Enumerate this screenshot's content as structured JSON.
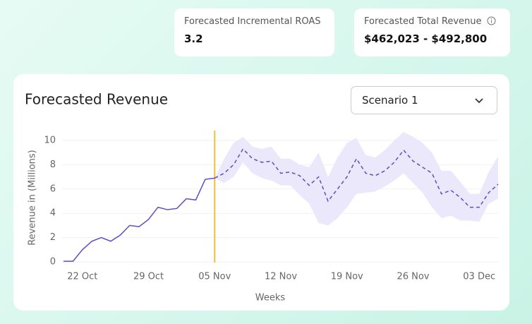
{
  "cards": [
    {
      "label": "Forecasted Incremental ROAS",
      "value": "3.2"
    },
    {
      "label": "Forecasted Total Revenue",
      "value": "$462,023 - $492,800"
    }
  ],
  "dropdown": {
    "selected": "Scenario 1"
  },
  "chart_data": {
    "type": "line",
    "title": "Forecasted Revenue",
    "y_label": "Revenue in (Millions)",
    "x_label": "Weeks",
    "categories": [
      null,
      null,
      "22 Oct",
      null,
      null,
      null,
      null,
      null,
      null,
      "29 Oct",
      null,
      null,
      null,
      null,
      null,
      null,
      "05 Nov",
      null,
      null,
      null,
      null,
      null,
      null,
      "12 Nov",
      null,
      null,
      null,
      null,
      null,
      null,
      "19 Nov",
      null,
      null,
      null,
      null,
      null,
      null,
      "26 Nov",
      null,
      null,
      null,
      null,
      null,
      null,
      "03 Dec",
      null,
      null
    ],
    "series": [
      {
        "color": "#5b4fc4",
        "dashed": false,
        "values": [
          0.05,
          0.05,
          1.0,
          1.7,
          2.0,
          1.7,
          2.2,
          3.0,
          2.9,
          3.5,
          4.5,
          4.3,
          4.4,
          5.2,
          5.1,
          6.8,
          6.9,
          null,
          null,
          null,
          null,
          null,
          null,
          null,
          null,
          null,
          null,
          null,
          null,
          null,
          null,
          null,
          null,
          null,
          null,
          null,
          null,
          null,
          null,
          null,
          null,
          null,
          null,
          null,
          null,
          null,
          null
        ]
      },
      {
        "color": "#5b4fc4",
        "dashed": true,
        "band_color": "#ebe8fb",
        "values": [
          null,
          null,
          null,
          null,
          null,
          null,
          null,
          null,
          null,
          null,
          null,
          null,
          null,
          null,
          null,
          null,
          6.9,
          7.3,
          8.0,
          9.3,
          8.5,
          8.2,
          8.3,
          7.3,
          7.4,
          7.1,
          6.3,
          7.0,
          5.0,
          6.0,
          7.0,
          8.5,
          7.3,
          7.1,
          7.5,
          8.2,
          9.2,
          8.3,
          7.8,
          7.3,
          5.6,
          5.9,
          5.3,
          4.5,
          4.5,
          5.7,
          6.4
        ],
        "lower": [
          null,
          null,
          null,
          null,
          null,
          null,
          null,
          null,
          null,
          null,
          null,
          null,
          null,
          null,
          null,
          null,
          6.9,
          6.5,
          7.0,
          8.2,
          7.3,
          6.9,
          6.7,
          6.3,
          6.3,
          5.5,
          4.8,
          3.2,
          3.0,
          3.6,
          4.5,
          5.6,
          5.7,
          5.8,
          6.2,
          6.7,
          7.3,
          6.5,
          5.7,
          4.5,
          3.6,
          3.8,
          3.4,
          3.4,
          3.3,
          4.8,
          5.2
        ],
        "upper": [
          null,
          null,
          null,
          null,
          null,
          null,
          null,
          null,
          null,
          null,
          null,
          null,
          null,
          null,
          null,
          null,
          6.9,
          8.5,
          9.8,
          10.3,
          9.5,
          9.3,
          9.5,
          8.5,
          8.5,
          8.0,
          7.8,
          9.0,
          7.0,
          8.6,
          9.8,
          10.2,
          8.8,
          8.6,
          9.2,
          10.0,
          10.7,
          10.3,
          9.8,
          9.0,
          7.5,
          7.5,
          6.6,
          5.6,
          5.6,
          7.4,
          8.7
        ]
      }
    ],
    "divider_color": "#f2c12e",
    "ylim": [
      0,
      10.9
    ],
    "yticks": [
      0,
      2,
      4,
      6,
      8,
      10
    ],
    "grid": true
  }
}
